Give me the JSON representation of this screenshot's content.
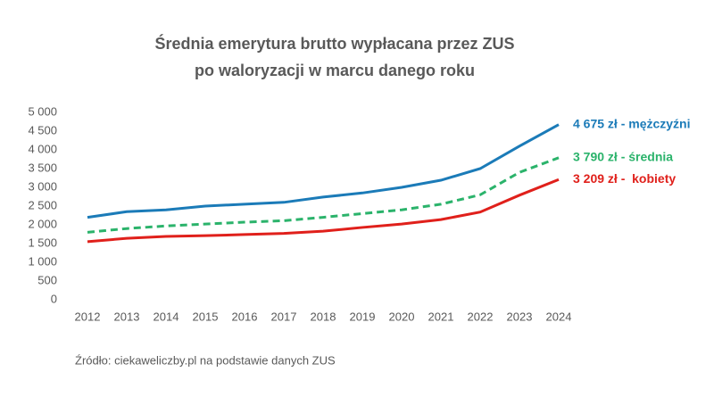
{
  "chart_data": {
    "type": "line",
    "title": "Średnia emerytura brutto wypłacana przez ZUS",
    "subtitle": "po waloryzacji w marcu danego roku",
    "source": "Źródło: ciekaweliczby.pl na podstawie danych ZUS",
    "categories": [
      "2012",
      "2013",
      "2014",
      "2015",
      "2016",
      "2017",
      "2018",
      "2019",
      "2020",
      "2021",
      "2022",
      "2023",
      "2024"
    ],
    "ylim": [
      0,
      5000
    ],
    "yticks": [
      0,
      500,
      {
        "value": 1000,
        "label": "1 000"
      },
      {
        "value": 1500,
        "label": "1 500"
      },
      {
        "value": 2000,
        "label": "2 000"
      },
      {
        "value": 2500,
        "label": "2 500"
      },
      {
        "value": 3000,
        "label": "3 000"
      },
      {
        "value": 3500,
        "label": "3 500"
      },
      {
        "value": 4000,
        "label": "4 000"
      },
      {
        "value": 4500,
        "label": "4 500"
      },
      {
        "value": 5000,
        "label": "5 000"
      }
    ],
    "grid": false,
    "series": [
      {
        "color": "#1b7bb8",
        "dashed": false,
        "values": [
          2200,
          2350,
          2400,
          2500,
          2550,
          2600,
          2740,
          2850,
          3000,
          3190,
          3500,
          4100,
          4675
        ],
        "value_labels": [
          null,
          null,
          null,
          null,
          null,
          null,
          null,
          null,
          null,
          null,
          null,
          null,
          "4 675 zł - mężczyźni"
        ]
      },
      {
        "color": "#2bb36b",
        "dashed": true,
        "values": [
          1800,
          1900,
          1970,
          2020,
          2070,
          2110,
          2200,
          2300,
          2400,
          2550,
          2800,
          3400,
          3790
        ],
        "value_labels": [
          null,
          null,
          null,
          null,
          null,
          null,
          null,
          null,
          null,
          null,
          null,
          null,
          "3 790 zł - średnia"
        ]
      },
      {
        "color": "#e0201b",
        "dashed": false,
        "values": [
          1550,
          1640,
          1690,
          1710,
          1740,
          1770,
          1830,
          1930,
          2020,
          2140,
          2340,
          2790,
          3209
        ],
        "value_labels": [
          null,
          null,
          null,
          null,
          null,
          null,
          null,
          null,
          null,
          null,
          null,
          null,
          "3 209 zł -  kobiety"
        ]
      }
    ]
  }
}
